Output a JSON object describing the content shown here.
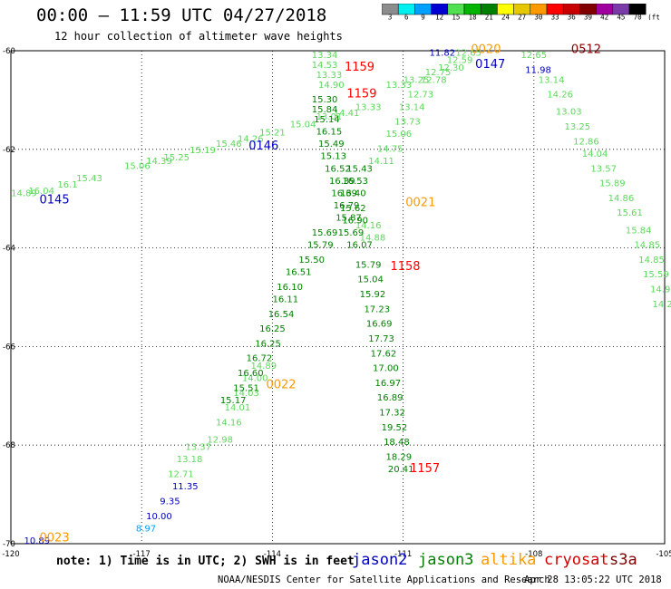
{
  "header": {
    "title": "00:00 – 11:59 UTC 04/27/2018",
    "subtitle": "12 hour collection of altimeter wave heights"
  },
  "legend": {
    "unit_label": "(ft)",
    "bins": [
      {
        "label": "3",
        "color": "#8c8c8c"
      },
      {
        "label": "6",
        "color": "#00f0f0"
      },
      {
        "label": "9",
        "color": "#00a0ff"
      },
      {
        "label": "12",
        "color": "#0000d0"
      },
      {
        "label": "15",
        "color": "#50e050"
      },
      {
        "label": "18",
        "color": "#00b400"
      },
      {
        "label": "21",
        "color": "#008000"
      },
      {
        "label": "24",
        "color": "#ffff00"
      },
      {
        "label": "27",
        "color": "#e6c800"
      },
      {
        "label": "30",
        "color": "#ff9900"
      },
      {
        "label": "33",
        "color": "#ff0000"
      },
      {
        "label": "36",
        "color": "#c80000"
      },
      {
        "label": "39",
        "color": "#800000"
      },
      {
        "label": "42",
        "color": "#a000a0"
      },
      {
        "label": "45",
        "color": "#7a3aa8"
      },
      {
        "label": "70",
        "color": "#000000"
      }
    ]
  },
  "map": {
    "lat_ticks": [
      "-60",
      "-62",
      "-64",
      "-66",
      "-68",
      "-70"
    ],
    "lon_ticks": [
      "-120",
      "-117",
      "-114",
      "-111",
      "-108",
      "-105"
    ]
  },
  "chart_data": {
    "type": "scatter",
    "xlim": [
      -120,
      -105
    ],
    "ylim": [
      -70,
      -60
    ],
    "grid": true,
    "units": "ft",
    "tracks": [
      {
        "name": "altika",
        "color": "#5cd95c",
        "points": [
          {
            "lon": -119.7,
            "lat": -62.95,
            "swh": "14.89"
          },
          {
            "lon": -119.3,
            "lat": -62.9,
            "swh": "16.04"
          },
          {
            "lon": -118.7,
            "lat": -62.78,
            "swh": "16.1"
          },
          {
            "lon": -118.2,
            "lat": -62.65,
            "swh": "15.43"
          },
          {
            "lon": -117.1,
            "lat": -62.4,
            "swh": "15.06"
          },
          {
            "lon": -116.6,
            "lat": -62.3,
            "swh": "14.39"
          },
          {
            "lon": -116.2,
            "lat": -62.22,
            "swh": "15.25"
          },
          {
            "lon": -115.6,
            "lat": -62.08,
            "swh": "15.19"
          },
          {
            "lon": -115.0,
            "lat": -61.95,
            "swh": "15.46"
          },
          {
            "lon": -114.5,
            "lat": -61.85,
            "swh": "14.26"
          },
          {
            "lon": -114.0,
            "lat": -61.72,
            "swh": "15.21"
          },
          {
            "lon": -113.3,
            "lat": -61.55,
            "swh": "15.04"
          },
          {
            "lon": -112.7,
            "lat": -61.4,
            "swh": "13.01"
          },
          {
            "lon": -112.3,
            "lat": -61.32,
            "swh": "14.41"
          },
          {
            "lon": -111.8,
            "lat": -61.2,
            "swh": "13.33"
          },
          {
            "lon": -112.8,
            "lat": -60.15,
            "swh": "13.34"
          },
          {
            "lon": -112.8,
            "lat": -60.35,
            "swh": "14.53"
          },
          {
            "lon": -112.7,
            "lat": -60.55,
            "swh": "13.33"
          },
          {
            "lon": -112.65,
            "lat": -60.75,
            "swh": "14.90"
          },
          {
            "lon": -111.1,
            "lat": -60.75,
            "swh": "13.33"
          },
          {
            "lon": -110.7,
            "lat": -60.65,
            "swh": "13.25"
          },
          {
            "lon": -110.2,
            "lat": -60.5,
            "swh": "12.75"
          },
          {
            "lon": -109.9,
            "lat": -60.4,
            "swh": "12.30"
          },
          {
            "lon": -109.7,
            "lat": -60.25,
            "swh": "12.59"
          },
          {
            "lon": -109.5,
            "lat": -60.1,
            "swh": "12.65"
          },
          {
            "lon": -110.3,
            "lat": -60.65,
            "swh": "12.78"
          },
          {
            "lon": -110.6,
            "lat": -60.95,
            "swh": "12.73"
          },
          {
            "lon": -110.8,
            "lat": -61.2,
            "swh": "13.14"
          },
          {
            "lon": -110.9,
            "lat": -61.5,
            "swh": "13.73"
          },
          {
            "lon": -111.1,
            "lat": -61.75,
            "swh": "15.06"
          },
          {
            "lon": -111.3,
            "lat": -62.05,
            "swh": "14.75"
          },
          {
            "lon": -111.5,
            "lat": -62.3,
            "swh": "14.11"
          },
          {
            "lon": -111.8,
            "lat": -63.6,
            "swh": "14.16"
          },
          {
            "lon": -111.7,
            "lat": -63.85,
            "swh": "14.88"
          },
          {
            "lon": -108.0,
            "lat": -60.15,
            "swh": "12.65"
          },
          {
            "lon": -107.6,
            "lat": -60.65,
            "swh": "13.14"
          },
          {
            "lon": -107.4,
            "lat": -60.95,
            "swh": "14.26"
          },
          {
            "lon": -107.2,
            "lat": -61.3,
            "swh": "13.03"
          },
          {
            "lon": -107.0,
            "lat": -61.6,
            "swh": "13.25"
          },
          {
            "lon": -106.8,
            "lat": -61.9,
            "swh": "12.86"
          },
          {
            "lon": -106.6,
            "lat": -62.15,
            "swh": "14.04"
          },
          {
            "lon": -106.4,
            "lat": -62.45,
            "swh": "13.57"
          },
          {
            "lon": -106.2,
            "lat": -62.75,
            "swh": "15.89"
          },
          {
            "lon": -106.0,
            "lat": -63.05,
            "swh": "14.86"
          },
          {
            "lon": -105.8,
            "lat": -63.35,
            "swh": "15.61"
          },
          {
            "lon": -105.6,
            "lat": -63.7,
            "swh": "15.84"
          },
          {
            "lon": -105.4,
            "lat": -64.0,
            "swh": "14.85"
          },
          {
            "lon": -105.3,
            "lat": -64.3,
            "swh": "14.85"
          },
          {
            "lon": -105.2,
            "lat": -64.6,
            "swh": "15.59"
          },
          {
            "lon": -105.1,
            "lat": -64.9,
            "swh": "14.9"
          },
          {
            "lon": -105.05,
            "lat": -65.2,
            "swh": "14.2"
          },
          {
            "lon": -115.7,
            "lat": -68.1,
            "swh": "13.37"
          },
          {
            "lon": -115.9,
            "lat": -68.35,
            "swh": "13.18"
          },
          {
            "lon": -116.1,
            "lat": -68.65,
            "swh": "12.71"
          },
          {
            "lon": -115.2,
            "lat": -67.95,
            "swh": "12.98"
          },
          {
            "lon": -115.0,
            "lat": -67.6,
            "swh": "14.16"
          },
          {
            "lon": -114.8,
            "lat": -67.3,
            "swh": "14.01"
          },
          {
            "lon": -114.6,
            "lat": -67.0,
            "swh": "14.03"
          },
          {
            "lon": -114.4,
            "lat": -66.7,
            "swh": "14.00"
          },
          {
            "lon": -114.2,
            "lat": -66.45,
            "swh": "14.89"
          }
        ]
      },
      {
        "name": "jason3",
        "color": "#008000",
        "points": [
          {
            "lon": -112.8,
            "lat": -61.05,
            "swh": "15.30"
          },
          {
            "lon": -112.8,
            "lat": -61.25,
            "swh": "15.84"
          },
          {
            "lon": -112.75,
            "lat": -61.45,
            "swh": "15.14"
          },
          {
            "lon": -112.7,
            "lat": -61.7,
            "swh": "16.15"
          },
          {
            "lon": -112.65,
            "lat": -61.95,
            "swh": "15.49"
          },
          {
            "lon": -112.6,
            "lat": -62.2,
            "swh": "15.13"
          },
          {
            "lon": -112.5,
            "lat": -62.45,
            "swh": "16.52"
          },
          {
            "lon": -112.4,
            "lat": -62.7,
            "swh": "16.39"
          },
          {
            "lon": -112.35,
            "lat": -62.95,
            "swh": "16.39"
          },
          {
            "lon": -112.3,
            "lat": -63.2,
            "swh": "16.79"
          },
          {
            "lon": -112.25,
            "lat": -63.45,
            "swh": "15.87"
          },
          {
            "lon": -112.2,
            "lat": -63.75,
            "swh": "15.69"
          },
          {
            "lon": -112.0,
            "lat": -62.45,
            "swh": "15.43"
          },
          {
            "lon": -112.1,
            "lat": -62.7,
            "swh": "16.53"
          },
          {
            "lon": -112.15,
            "lat": -62.95,
            "swh": "16.40"
          },
          {
            "lon": -112.15,
            "lat": -63.25,
            "swh": "15.62"
          },
          {
            "lon": -112.1,
            "lat": -63.5,
            "swh": "16.90"
          },
          {
            "lon": -112.0,
            "lat": -64.0,
            "swh": "16.07"
          },
          {
            "lon": -112.8,
            "lat": -63.75,
            "swh": "15.69"
          },
          {
            "lon": -112.9,
            "lat": -64.0,
            "swh": "15.79"
          },
          {
            "lon": -113.1,
            "lat": -64.3,
            "swh": "15.50"
          },
          {
            "lon": -113.4,
            "lat": -64.55,
            "swh": "16.51"
          },
          {
            "lon": -113.6,
            "lat": -64.85,
            "swh": "16.10"
          },
          {
            "lon": -113.7,
            "lat": -65.1,
            "swh": "16.11"
          },
          {
            "lon": -113.8,
            "lat": -65.4,
            "swh": "16.54"
          },
          {
            "lon": -114.0,
            "lat": -65.7,
            "swh": "16.25"
          },
          {
            "lon": -114.1,
            "lat": -66.0,
            "swh": "16.25"
          },
          {
            "lon": -114.3,
            "lat": -66.3,
            "swh": "16.72"
          },
          {
            "lon": -114.5,
            "lat": -66.6,
            "swh": "16.60"
          },
          {
            "lon": -114.6,
            "lat": -66.9,
            "swh": "15.51"
          },
          {
            "lon": -114.9,
            "lat": -67.15,
            "swh": "15.17"
          },
          {
            "lon": -111.8,
            "lat": -64.4,
            "swh": "15.79"
          },
          {
            "lon": -111.75,
            "lat": -64.7,
            "swh": "15.04"
          },
          {
            "lon": -111.7,
            "lat": -65.0,
            "swh": "15.92"
          },
          {
            "lon": -111.6,
            "lat": -65.3,
            "swh": "17.23"
          },
          {
            "lon": -111.55,
            "lat": -65.6,
            "swh": "16.69"
          },
          {
            "lon": -111.5,
            "lat": -65.9,
            "swh": "17.73"
          },
          {
            "lon": -111.45,
            "lat": -66.2,
            "swh": "17.62"
          },
          {
            "lon": -111.4,
            "lat": -66.5,
            "swh": "17.00"
          },
          {
            "lon": -111.35,
            "lat": -66.8,
            "swh": "16.97"
          },
          {
            "lon": -111.3,
            "lat": -67.1,
            "swh": "16.89"
          },
          {
            "lon": -111.25,
            "lat": -67.4,
            "swh": "17.32"
          },
          {
            "lon": -111.2,
            "lat": -67.7,
            "swh": "19.52"
          },
          {
            "lon": -111.15,
            "lat": -68.0,
            "swh": "18.48"
          },
          {
            "lon": -111.1,
            "lat": -68.3,
            "swh": "18.29"
          },
          {
            "lon": -111.05,
            "lat": -68.55,
            "swh": "20.41"
          }
        ]
      },
      {
        "name": "jason2",
        "color": "#0000c0",
        "points": [
          {
            "lon": -110.1,
            "lat": -60.1,
            "swh": "11.82"
          },
          {
            "lon": -107.9,
            "lat": -60.45,
            "swh": "11.98"
          },
          {
            "lon": -116.0,
            "lat": -68.9,
            "swh": "11.35"
          },
          {
            "lon": -116.35,
            "lat": -69.2,
            "swh": "9.35"
          },
          {
            "lon": -116.6,
            "lat": -69.5,
            "swh": "10.00"
          },
          {
            "lon": -119.4,
            "lat": -70.0,
            "swh": "10.89"
          }
        ]
      },
      {
        "name": "jason2-light",
        "color": "#00a0ff",
        "points": [
          {
            "lon": -116.9,
            "lat": -69.75,
            "swh": "8.97"
          }
        ]
      }
    ],
    "time_labels": [
      {
        "label": "1159",
        "color": "#ff0000"
      },
      {
        "label": "1159",
        "color": "#ff0000"
      },
      {
        "label": "1158",
        "color": "#ff0000"
      },
      {
        "label": "1157",
        "color": "#ff0000"
      },
      {
        "label": "0146",
        "color": "#0000c0"
      },
      {
        "label": "0145",
        "color": "#0000c0"
      },
      {
        "label": "0147",
        "color": "#0000c0"
      },
      {
        "label": "0020",
        "color": "#ff9900"
      },
      {
        "label": "0021",
        "color": "#ff9900"
      },
      {
        "label": "0022",
        "color": "#ff9900"
      },
      {
        "label": "0023",
        "color": "#ff9900"
      },
      {
        "label": "0512",
        "color": "#800000"
      }
    ]
  },
  "footer": {
    "note": "note: 1) Time is in UTC; 2) SWH is in feet",
    "satellites": [
      {
        "name": "jason2",
        "color": "#0000c0"
      },
      {
        "name": "jason3",
        "color": "#008000"
      },
      {
        "name": "altika",
        "color": "#ff9900"
      },
      {
        "name": "cryosat",
        "color": "#d00000"
      },
      {
        "name": "s3a",
        "color": "#800000"
      }
    ],
    "credit": "NOAA/NESDIS Center for Satellite Applications and Research",
    "timestamp": "Apr 28 13:05:22 UTC 2018"
  }
}
